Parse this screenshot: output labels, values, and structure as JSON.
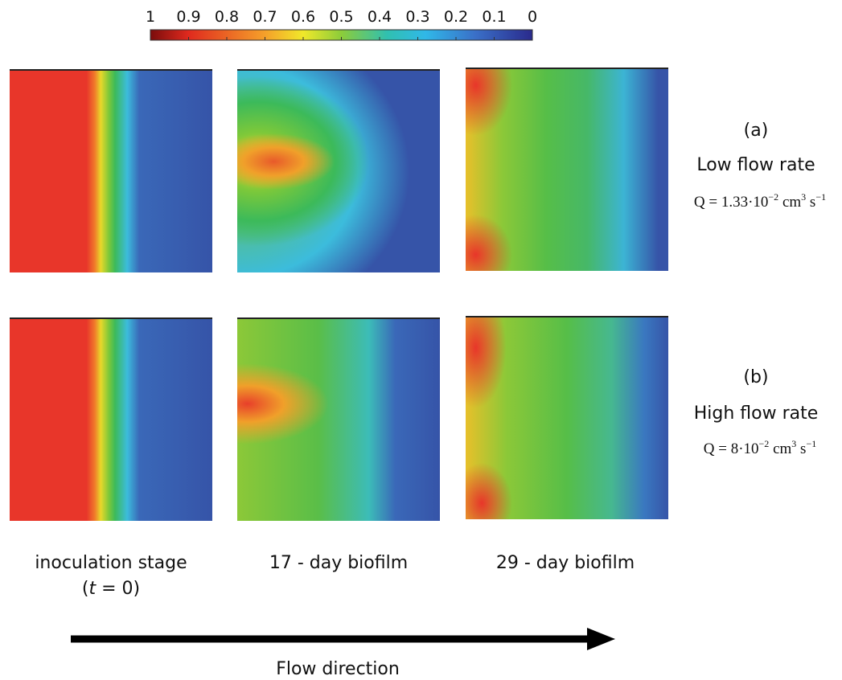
{
  "colorbar": {
    "lim": [
      1,
      0
    ],
    "ticks": [
      1,
      0.9,
      0.8,
      0.7,
      0.6,
      0.5,
      0.4,
      0.3,
      0.2,
      0.1,
      0
    ]
  },
  "rows": [
    {
      "label": "(a)",
      "name": "Low flow rate",
      "formula": [
        {
          "text": "Q = 1.33·10"
        },
        {
          "text": "−2",
          "sup": true
        },
        {
          "text": " cm"
        },
        {
          "text": "3",
          "sup": true
        },
        {
          "text": " s"
        },
        {
          "text": "−1",
          "sup": true
        }
      ]
    },
    {
      "label": "(b)",
      "name": "High flow rate",
      "formula": [
        {
          "text": "Q = 8·10"
        },
        {
          "text": "−2",
          "sup": true
        },
        {
          "text": " cm"
        },
        {
          "text": "3",
          "sup": true
        },
        {
          "text": " s"
        },
        {
          "text": "−1",
          "sup": true
        }
      ]
    }
  ],
  "columns": [
    {
      "title": "inoculation stage",
      "sub": [
        "(",
        "t",
        " = 0)"
      ]
    },
    {
      "title": "17 - day biofilm"
    },
    {
      "title": "29 - day biofilm"
    }
  ],
  "arrow_label": "Flow direction"
}
